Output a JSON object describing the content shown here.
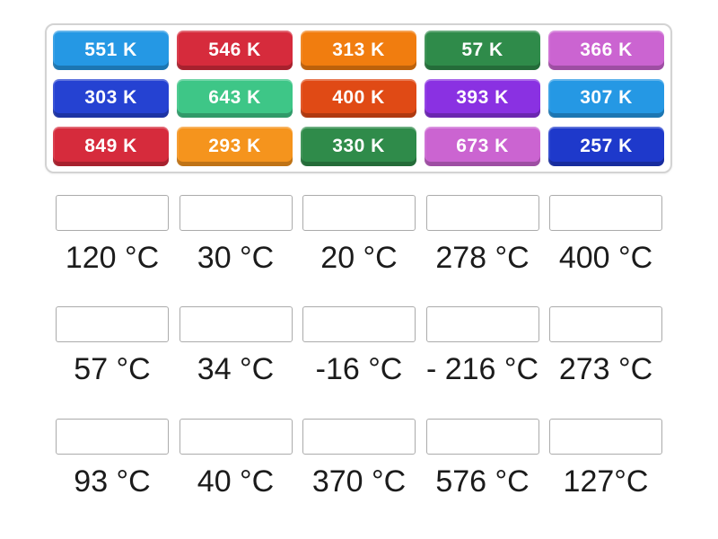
{
  "tray": {
    "tiles": [
      {
        "label": "551 K",
        "color": "#2598e4"
      },
      {
        "label": "546 K",
        "color": "#d62b3c"
      },
      {
        "label": "313 K",
        "color": "#f17d0f"
      },
      {
        "label": "57 K",
        "color": "#2f8b4a"
      },
      {
        "label": "366 K",
        "color": "#cb64d1"
      },
      {
        "label": "303 K",
        "color": "#2542d2"
      },
      {
        "label": "643 K",
        "color": "#3ec687"
      },
      {
        "label": "400 K",
        "color": "#e04a15"
      },
      {
        "label": "393 K",
        "color": "#8a31e2"
      },
      {
        "label": "307 K",
        "color": "#2598e4"
      },
      {
        "label": "849 K",
        "color": "#d62b3c"
      },
      {
        "label": "293 K",
        "color": "#f5941d"
      },
      {
        "label": "330 K",
        "color": "#2f8b4a"
      },
      {
        "label": "673 K",
        "color": "#cb64d1"
      },
      {
        "label": "257 K",
        "color": "#1e39cb"
      }
    ]
  },
  "answer_groups": [
    {
      "labels": [
        "120 °C",
        "30 °C",
        "20 °C",
        "278 °C",
        "400 °C"
      ]
    },
    {
      "labels": [
        "57 °C",
        "34 °C",
        "-16 °C",
        "- 216 °C",
        "273 °C"
      ]
    },
    {
      "labels": [
        "93 °C",
        "40 °C",
        "370 °C",
        "576 °C",
        "127°C"
      ]
    }
  ]
}
